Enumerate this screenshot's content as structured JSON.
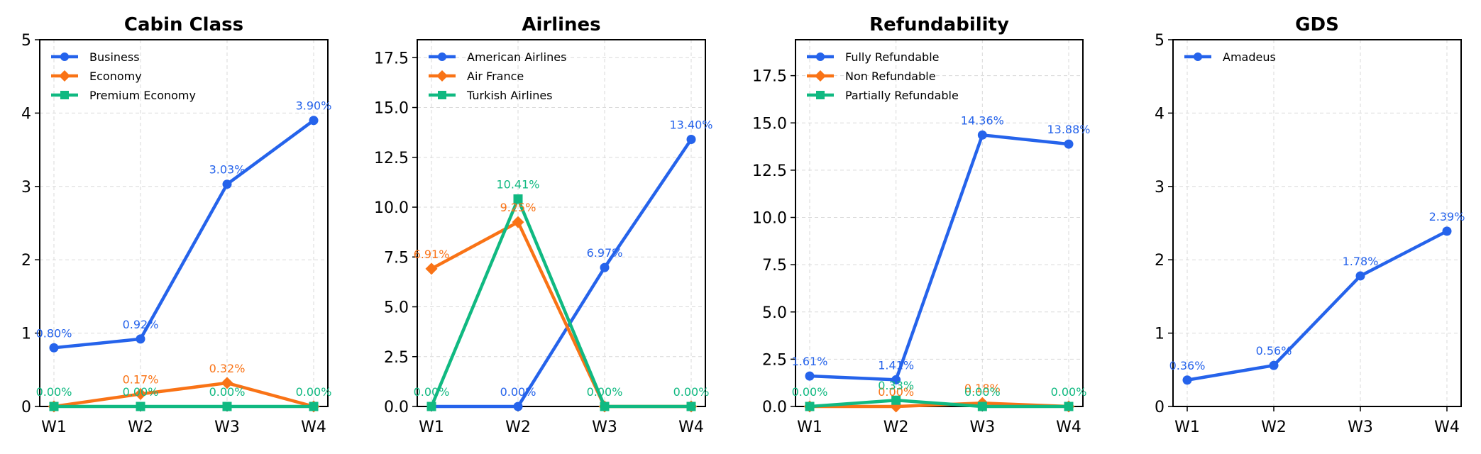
{
  "chart_data": [
    {
      "type": "line",
      "title": "Cabin Class",
      "categories": [
        "W1",
        "W2",
        "W3",
        "W4"
      ],
      "ylim": [
        0,
        5
      ],
      "yticks": [
        "0",
        "1",
        "2",
        "3",
        "4",
        "5"
      ],
      "grid": true,
      "legend_position": "top-left",
      "series": [
        {
          "name": "Business",
          "values": [
            0.8,
            0.92,
            3.03,
            3.9
          ],
          "labels": [
            "0.80%",
            "0.92%",
            "3.03%",
            "3.90%"
          ],
          "color": "#2563eb",
          "marker": "circle"
        },
        {
          "name": "Economy",
          "values": [
            0.0,
            0.17,
            0.32,
            0.0
          ],
          "labels": [
            "",
            "0.17%",
            "0.32%",
            ""
          ],
          "color": "#f97316",
          "marker": "diamond"
        },
        {
          "name": "Premium Economy",
          "values": [
            0.0,
            0.0,
            0.0,
            0.0
          ],
          "labels": [
            "0.00%",
            "0.00%",
            "0.00%",
            "0.00%"
          ],
          "color": "#10b981",
          "marker": "square"
        }
      ]
    },
    {
      "type": "line",
      "title": "Airlines",
      "categories": [
        "W1",
        "W2",
        "W3",
        "W4"
      ],
      "ylim": [
        0,
        18.4
      ],
      "yticks": [
        "0.0",
        "2.5",
        "5.0",
        "7.5",
        "10.0",
        "12.5",
        "15.0",
        "17.5"
      ],
      "grid": true,
      "legend_position": "top-left",
      "series": [
        {
          "name": "American Airlines",
          "values": [
            0.0,
            0.0,
            6.97,
            13.4
          ],
          "labels": [
            "",
            "0.00%",
            "6.97%",
            "13.40%"
          ],
          "color": "#2563eb",
          "marker": "circle"
        },
        {
          "name": "Air France",
          "values": [
            6.91,
            9.25,
            0.0,
            0.0
          ],
          "labels": [
            "6.91%",
            "9.25%",
            "",
            ""
          ],
          "color": "#f97316",
          "marker": "diamond"
        },
        {
          "name": "Turkish Airlines",
          "values": [
            0.0,
            10.41,
            0.0,
            0.0
          ],
          "labels": [
            "0.00%",
            "10.41%",
            "0.00%",
            "0.00%"
          ],
          "color": "#10b981",
          "marker": "square"
        }
      ]
    },
    {
      "type": "line",
      "title": "Refundability",
      "categories": [
        "W1",
        "W2",
        "W3",
        "W4"
      ],
      "ylim": [
        0,
        19.4
      ],
      "yticks": [
        "0.0",
        "2.5",
        "5.0",
        "7.5",
        "10.0",
        "12.5",
        "15.0",
        "17.5"
      ],
      "grid": true,
      "legend_position": "top-left",
      "series": [
        {
          "name": "Fully Refundable",
          "values": [
            1.61,
            1.41,
            14.36,
            13.88
          ],
          "labels": [
            "1.61%",
            "1.41%",
            "14.36%",
            "13.88%"
          ],
          "color": "#2563eb",
          "marker": "circle"
        },
        {
          "name": "Non Refundable",
          "values": [
            0.0,
            0.0,
            0.18,
            0.0
          ],
          "labels": [
            "",
            "0.00%",
            "0.18%",
            ""
          ],
          "color": "#f97316",
          "marker": "diamond"
        },
        {
          "name": "Partially Refundable",
          "values": [
            0.0,
            0.33,
            0.0,
            0.0
          ],
          "labels": [
            "0.00%",
            "0.33%",
            "0.00%",
            "0.00%"
          ],
          "color": "#10b981",
          "marker": "square"
        }
      ]
    },
    {
      "type": "line",
      "title": "GDS",
      "categories": [
        "W1",
        "W2",
        "W3",
        "W4"
      ],
      "ylim": [
        0,
        5
      ],
      "yticks": [
        "0",
        "1",
        "2",
        "3",
        "4",
        "5"
      ],
      "grid": true,
      "legend_position": "top-left",
      "series": [
        {
          "name": "Amadeus",
          "values": [
            0.36,
            0.56,
            1.78,
            2.39
          ],
          "labels": [
            "0.36%",
            "0.56%",
            "1.78%",
            "2.39%"
          ],
          "color": "#2563eb",
          "marker": "circle"
        }
      ]
    }
  ]
}
